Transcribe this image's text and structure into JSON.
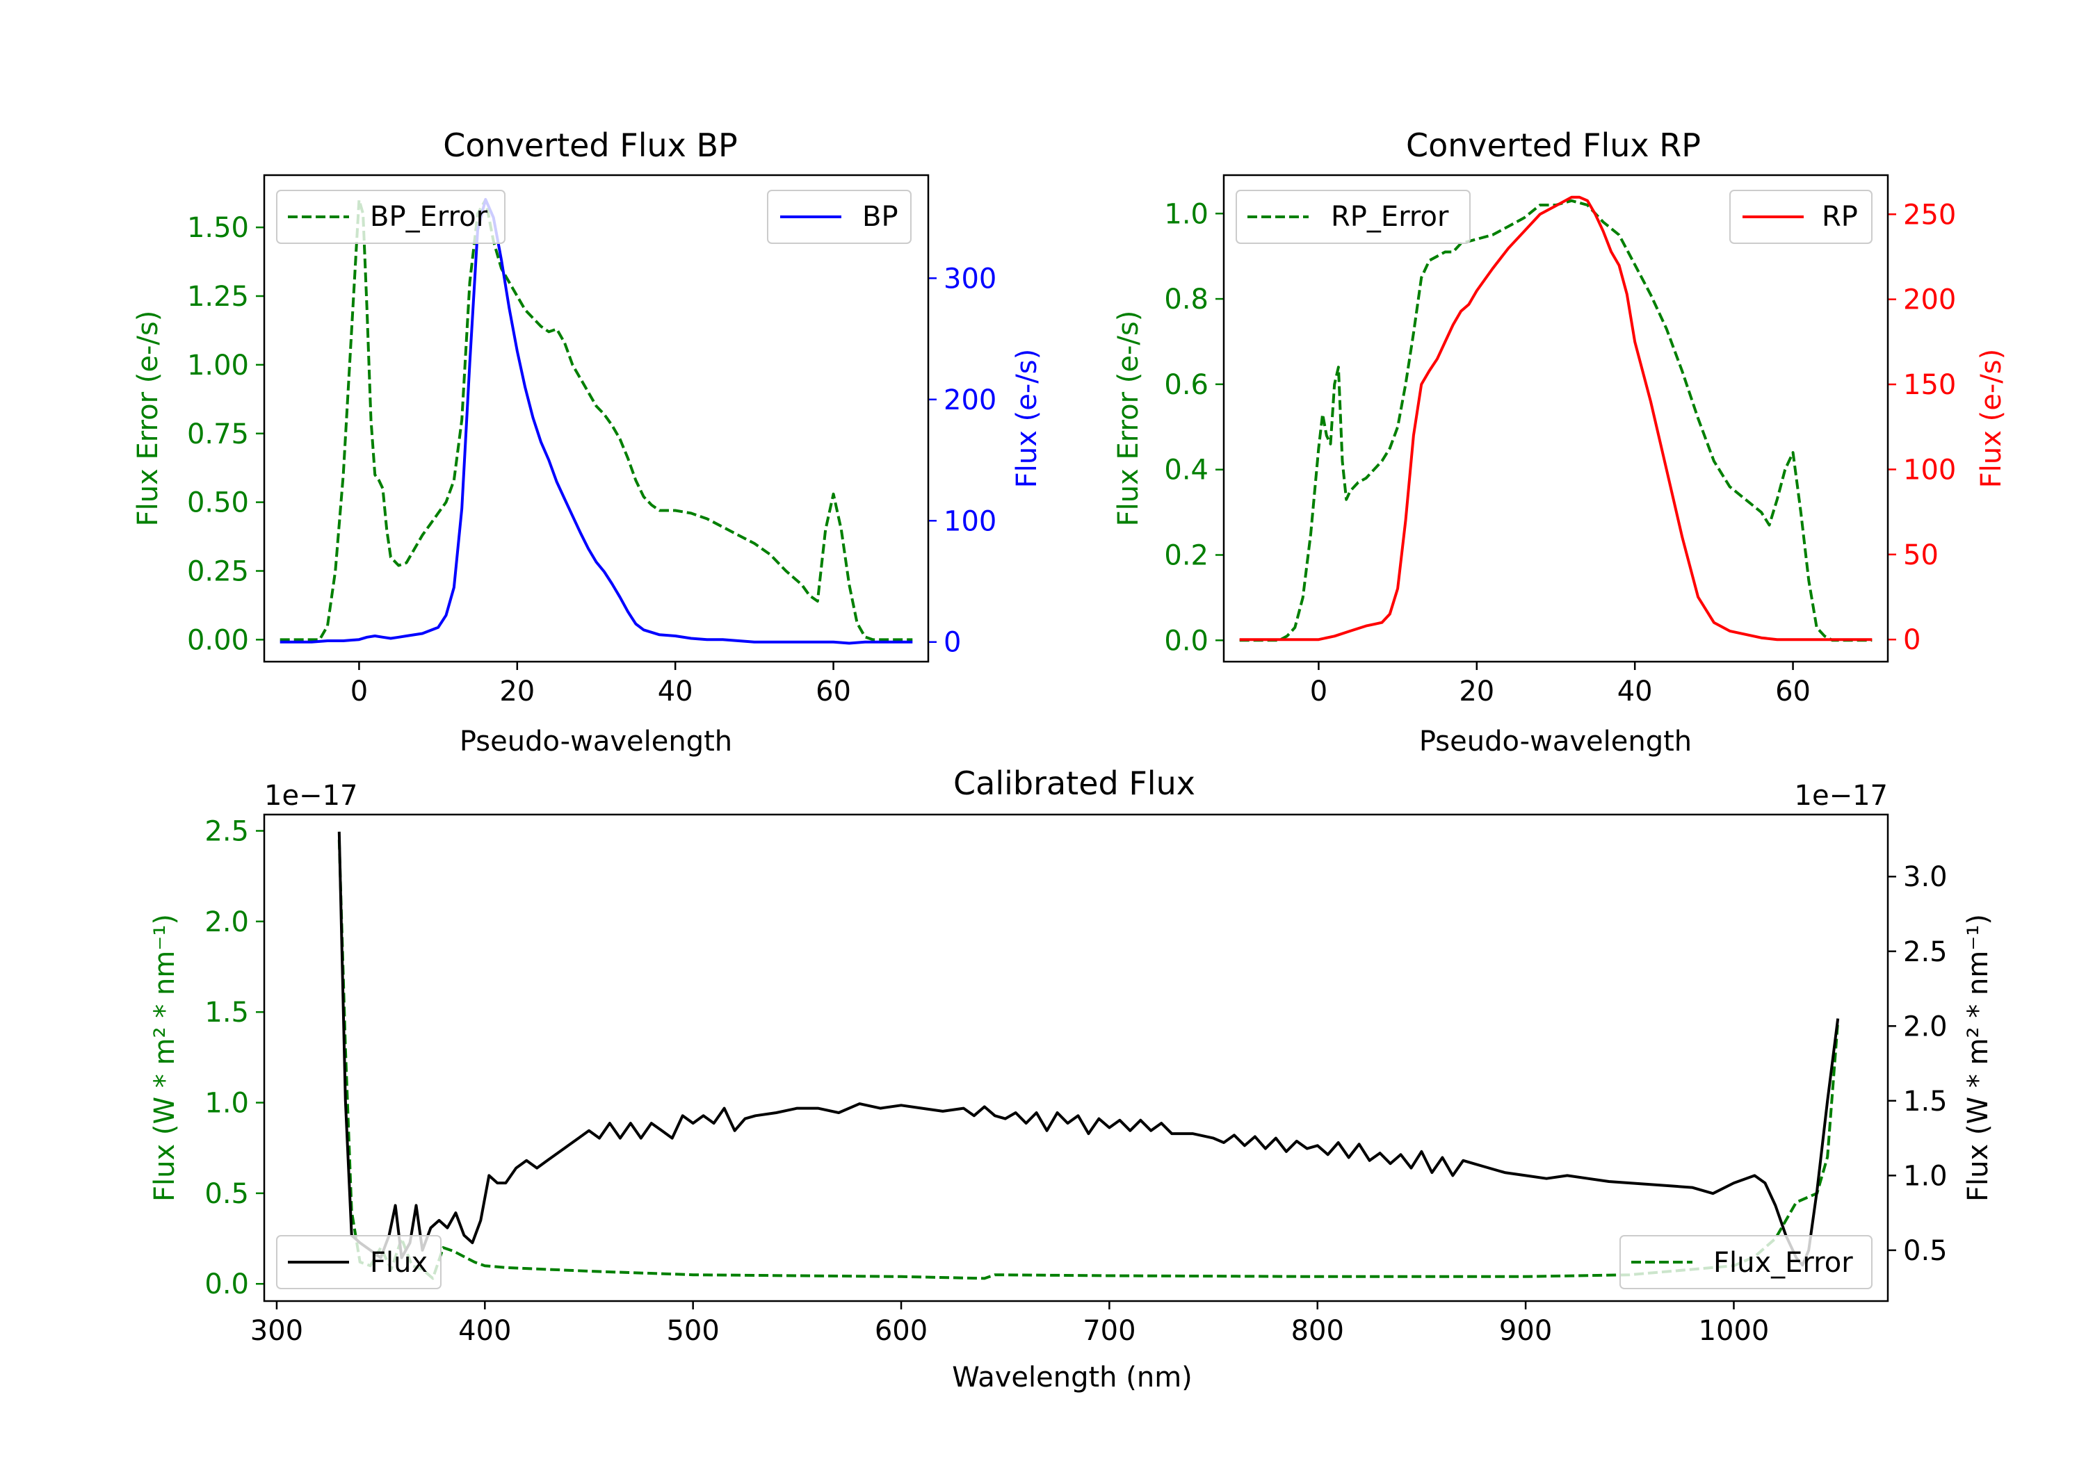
{
  "colors": {
    "bp_error": "#007f00",
    "bp": "#0000ff",
    "rp_error": "#007f00",
    "rp": "#ff0000",
    "cal_flux": "#000000",
    "cal_error": "#007f00",
    "axis": "#000000"
  },
  "chart_data": [
    {
      "type": "line",
      "title": "Converted Flux BP",
      "xlabel": "Pseudo-wavelength",
      "ylabel_left": "Flux Error (e-/s)",
      "ylabel_right": "Flux (e-/s)",
      "xlim": [
        -12,
        72
      ],
      "ylim_left": [
        -0.08,
        1.69
      ],
      "ylim_right": [
        -16.2,
        385
      ],
      "x_ticks": [
        0,
        20,
        40,
        60
      ],
      "y_ticks_left": [
        0.0,
        0.25,
        0.5,
        0.75,
        1.0,
        1.25,
        1.5
      ],
      "y_ticks_right": [
        0,
        100,
        200,
        300
      ],
      "x_tick_labels": [
        "0",
        "20",
        "40",
        "60"
      ],
      "y_tick_labels_left": [
        "0.00",
        "0.25",
        "0.50",
        "0.75",
        "1.00",
        "1.25",
        "1.50"
      ],
      "y_tick_labels_right": [
        "0",
        "100",
        "200",
        "300"
      ],
      "legend_left": "BP_Error",
      "legend_right": "BP",
      "series": [
        {
          "name": "BP_Error",
          "axis": "left",
          "style": "dashed",
          "x": [
            -10,
            -5,
            -4,
            -3,
            -2,
            -1,
            0,
            0.5,
            1,
            1.5,
            2,
            2.5,
            3,
            3.5,
            4,
            5,
            6,
            7,
            8,
            9,
            10,
            11,
            12,
            13,
            14,
            15,
            16,
            17,
            18,
            19,
            20,
            21,
            22,
            23,
            24,
            25,
            26,
            27,
            28,
            29,
            30,
            31,
            32,
            33,
            34,
            35,
            36,
            37,
            38,
            40,
            42,
            44,
            46,
            48,
            50,
            52,
            54,
            56,
            57,
            58,
            59,
            60,
            61,
            62,
            63,
            64,
            65,
            66,
            68,
            70
          ],
          "y": [
            0.0,
            0.0,
            0.05,
            0.25,
            0.6,
            1.1,
            1.6,
            1.55,
            1.2,
            0.8,
            0.6,
            0.58,
            0.55,
            0.4,
            0.3,
            0.27,
            0.28,
            0.33,
            0.38,
            0.42,
            0.46,
            0.5,
            0.58,
            0.8,
            1.3,
            1.55,
            1.6,
            1.45,
            1.35,
            1.3,
            1.25,
            1.2,
            1.17,
            1.14,
            1.12,
            1.13,
            1.08,
            1.0,
            0.95,
            0.9,
            0.85,
            0.82,
            0.78,
            0.73,
            0.66,
            0.58,
            0.52,
            0.49,
            0.47,
            0.47,
            0.46,
            0.44,
            0.41,
            0.38,
            0.35,
            0.31,
            0.25,
            0.2,
            0.16,
            0.14,
            0.4,
            0.53,
            0.4,
            0.2,
            0.06,
            0.01,
            0.0,
            0.0,
            0.0,
            0.0
          ]
        },
        {
          "name": "BP",
          "axis": "right",
          "style": "solid",
          "x": [
            -10,
            -8,
            -6,
            -4,
            -2,
            0,
            1,
            2,
            3,
            4,
            5,
            6,
            8,
            10,
            11,
            12,
            13,
            14,
            15,
            16,
            17,
            18,
            19,
            20,
            21,
            22,
            23,
            24,
            25,
            26,
            27,
            28,
            29,
            30,
            31,
            32,
            33,
            34,
            35,
            36,
            37,
            38,
            40,
            42,
            44,
            46,
            48,
            50,
            52,
            54,
            56,
            58,
            60,
            62,
            64,
            66,
            68,
            70
          ],
          "y": [
            0,
            0,
            0,
            1,
            1,
            2,
            4,
            5,
            4,
            3,
            4,
            5,
            7,
            12,
            22,
            45,
            110,
            230,
            340,
            365,
            350,
            315,
            275,
            240,
            210,
            185,
            165,
            150,
            132,
            118,
            104,
            90,
            77,
            66,
            58,
            48,
            37,
            25,
            15,
            10,
            8,
            6,
            5,
            3,
            2,
            2,
            1,
            0,
            0,
            0,
            0,
            0,
            0,
            -1,
            0,
            0,
            0,
            0
          ]
        }
      ]
    },
    {
      "type": "line",
      "title": "Converted Flux RP",
      "xlabel": "Pseudo-wavelength",
      "ylabel_left": "Flux Error (e-/s)",
      "ylabel_right": "Flux (e-/s)",
      "xlim": [
        -12,
        72
      ],
      "ylim_left": [
        -0.05,
        1.09
      ],
      "ylim_right": [
        -13,
        273
      ],
      "x_ticks": [
        0,
        20,
        40,
        60
      ],
      "y_ticks_left": [
        0.0,
        0.2,
        0.4,
        0.6,
        0.8,
        1.0
      ],
      "y_ticks_right": [
        0,
        50,
        100,
        150,
        200,
        250
      ],
      "x_tick_labels": [
        "0",
        "20",
        "40",
        "60"
      ],
      "y_tick_labels_left": [
        "0.0",
        "0.2",
        "0.4",
        "0.6",
        "0.8",
        "1.0"
      ],
      "y_tick_labels_right": [
        "0",
        "50",
        "100",
        "150",
        "200",
        "250"
      ],
      "legend_left": "RP_Error",
      "legend_right": "RP",
      "series": [
        {
          "name": "RP_Error",
          "axis": "left",
          "style": "dashed",
          "x": [
            -10,
            -5,
            -4,
            -3,
            -2,
            -1,
            0,
            0.5,
            1,
            1.5,
            2,
            2.5,
            3,
            3.5,
            4,
            5,
            6,
            7,
            8,
            9,
            10,
            11,
            12,
            13,
            14,
            15,
            16,
            17,
            18,
            20,
            22,
            24,
            26,
            28,
            30,
            32,
            34,
            36,
            38,
            40,
            42,
            44,
            46,
            48,
            50,
            52,
            54,
            56,
            57,
            58,
            59,
            60,
            61,
            62,
            63,
            64,
            65,
            68,
            70
          ],
          "y": [
            0.0,
            0.0,
            0.01,
            0.03,
            0.1,
            0.25,
            0.45,
            0.53,
            0.48,
            0.46,
            0.6,
            0.64,
            0.42,
            0.33,
            0.35,
            0.37,
            0.38,
            0.4,
            0.42,
            0.45,
            0.5,
            0.6,
            0.72,
            0.85,
            0.89,
            0.9,
            0.91,
            0.91,
            0.93,
            0.94,
            0.95,
            0.97,
            0.99,
            1.02,
            1.02,
            1.03,
            1.02,
            0.98,
            0.95,
            0.88,
            0.81,
            0.73,
            0.63,
            0.52,
            0.42,
            0.36,
            0.33,
            0.3,
            0.27,
            0.33,
            0.4,
            0.44,
            0.3,
            0.14,
            0.03,
            0.01,
            0.0,
            0.0,
            0.0
          ]
        },
        {
          "name": "RP",
          "axis": "right",
          "style": "solid",
          "x": [
            -10,
            -6,
            -4,
            -2,
            0,
            2,
            4,
            6,
            7,
            8,
            9,
            10,
            11,
            12,
            13,
            14,
            15,
            16,
            17,
            18,
            19,
            20,
            22,
            24,
            26,
            28,
            30,
            32,
            33,
            34,
            35,
            36,
            37,
            38,
            39,
            40,
            42,
            44,
            46,
            48,
            50,
            52,
            54,
            56,
            58,
            60,
            62,
            64,
            66,
            68,
            70
          ],
          "y": [
            0,
            0,
            0,
            0,
            0,
            2,
            5,
            8,
            9,
            10,
            15,
            30,
            70,
            120,
            150,
            158,
            165,
            175,
            185,
            193,
            197,
            205,
            218,
            230,
            240,
            250,
            255,
            260,
            260,
            258,
            250,
            240,
            228,
            220,
            203,
            175,
            140,
            100,
            60,
            25,
            10,
            5,
            3,
            1,
            0,
            0,
            0,
            0,
            0,
            0,
            0
          ]
        }
      ]
    },
    {
      "type": "line",
      "title": "Calibrated Flux",
      "xlabel": "Wavelength (nm)",
      "ylabel_left": "Flux (W * m² * nm⁻¹)",
      "ylabel_right": "Flux (W * m² * nm⁻¹)",
      "offset_left": "1e−17",
      "offset_right": "1e−17",
      "xlim": [
        294,
        1074
      ],
      "ylim_left": [
        -0.095,
        2.59
      ],
      "ylim_right": [
        0.16,
        3.415
      ],
      "x_ticks": [
        300,
        400,
        500,
        600,
        700,
        800,
        900,
        1000
      ],
      "y_ticks_left": [
        0.0,
        0.5,
        1.0,
        1.5,
        2.0,
        2.5
      ],
      "y_ticks_right": [
        0.5,
        1.0,
        1.5,
        2.0,
        2.5,
        3.0
      ],
      "x_tick_labels": [
        "300",
        "400",
        "500",
        "600",
        "700",
        "800",
        "900",
        "1000"
      ],
      "y_tick_labels_left": [
        "0.0",
        "0.5",
        "1.0",
        "1.5",
        "2.0",
        "2.5"
      ],
      "y_tick_labels_right": [
        "0.5",
        "1.0",
        "1.5",
        "2.0",
        "2.5",
        "3.0"
      ],
      "legend_left": "Flux",
      "legend_right": "Flux_Error",
      "series": [
        {
          "name": "Flux_Error",
          "axis": "left",
          "style": "dashed",
          "x": [
            330,
            333,
            336,
            340,
            345,
            350,
            355,
            360,
            365,
            370,
            375,
            380,
            385,
            390,
            395,
            400,
            410,
            420,
            430,
            440,
            450,
            500,
            550,
            600,
            640,
            645,
            700,
            800,
            900,
            950,
            1000,
            1010,
            1020,
            1030,
            1040,
            1045,
            1050
          ],
          "y": [
            2.45,
            1.3,
            0.4,
            0.12,
            0.1,
            0.2,
            0.08,
            0.25,
            0.1,
            0.08,
            0.03,
            0.2,
            0.18,
            0.15,
            0.12,
            0.1,
            0.09,
            0.085,
            0.08,
            0.075,
            0.07,
            0.05,
            0.045,
            0.04,
            0.03,
            0.05,
            0.045,
            0.04,
            0.04,
            0.05,
            0.1,
            0.15,
            0.25,
            0.45,
            0.5,
            0.7,
            1.45
          ]
        },
        {
          "name": "Flux",
          "axis": "right",
          "style": "solid",
          "x": [
            330,
            333,
            336,
            340,
            345,
            350,
            354,
            357,
            360,
            364,
            367,
            370,
            374,
            378,
            382,
            386,
            390,
            394,
            398,
            402,
            406,
            410,
            415,
            420,
            425,
            430,
            440,
            445,
            450,
            455,
            460,
            465,
            470,
            475,
            480,
            485,
            490,
            495,
            500,
            505,
            510,
            515,
            520,
            525,
            530,
            540,
            550,
            560,
            570,
            580,
            590,
            600,
            610,
            620,
            630,
            635,
            640,
            645,
            650,
            655,
            660,
            665,
            670,
            675,
            680,
            685,
            690,
            695,
            700,
            705,
            710,
            715,
            720,
            725,
            730,
            740,
            750,
            755,
            760,
            765,
            770,
            775,
            780,
            785,
            790,
            795,
            800,
            805,
            810,
            815,
            820,
            825,
            830,
            835,
            840,
            845,
            850,
            855,
            860,
            865,
            870,
            875,
            880,
            890,
            900,
            910,
            920,
            930,
            940,
            950,
            960,
            970,
            980,
            990,
            1000,
            1010,
            1015,
            1020,
            1025,
            1030,
            1033,
            1036,
            1040,
            1045,
            1050
          ],
          "y": [
            3.3,
            1.5,
            0.6,
            0.55,
            0.5,
            0.45,
            0.6,
            0.8,
            0.45,
            0.55,
            0.8,
            0.5,
            0.65,
            0.7,
            0.65,
            0.75,
            0.6,
            0.55,
            0.7,
            1.0,
            0.95,
            0.95,
            1.05,
            1.1,
            1.05,
            1.1,
            1.2,
            1.25,
            1.3,
            1.25,
            1.35,
            1.25,
            1.35,
            1.25,
            1.35,
            1.3,
            1.25,
            1.4,
            1.35,
            1.4,
            1.35,
            1.45,
            1.3,
            1.38,
            1.4,
            1.42,
            1.45,
            1.45,
            1.42,
            1.48,
            1.45,
            1.47,
            1.45,
            1.43,
            1.45,
            1.4,
            1.46,
            1.4,
            1.38,
            1.42,
            1.35,
            1.42,
            1.3,
            1.42,
            1.35,
            1.4,
            1.28,
            1.38,
            1.32,
            1.37,
            1.3,
            1.37,
            1.3,
            1.35,
            1.28,
            1.28,
            1.25,
            1.22,
            1.27,
            1.2,
            1.26,
            1.18,
            1.25,
            1.16,
            1.23,
            1.18,
            1.2,
            1.14,
            1.22,
            1.12,
            1.21,
            1.1,
            1.15,
            1.08,
            1.14,
            1.05,
            1.16,
            1.02,
            1.12,
            1.0,
            1.1,
            1.08,
            1.06,
            1.02,
            1.0,
            0.98,
            1.0,
            0.98,
            0.96,
            0.95,
            0.94,
            0.93,
            0.92,
            0.88,
            0.95,
            1.0,
            0.95,
            0.8,
            0.6,
            0.45,
            0.4,
            0.5,
            0.9,
            1.5,
            2.05
          ]
        }
      ]
    }
  ]
}
